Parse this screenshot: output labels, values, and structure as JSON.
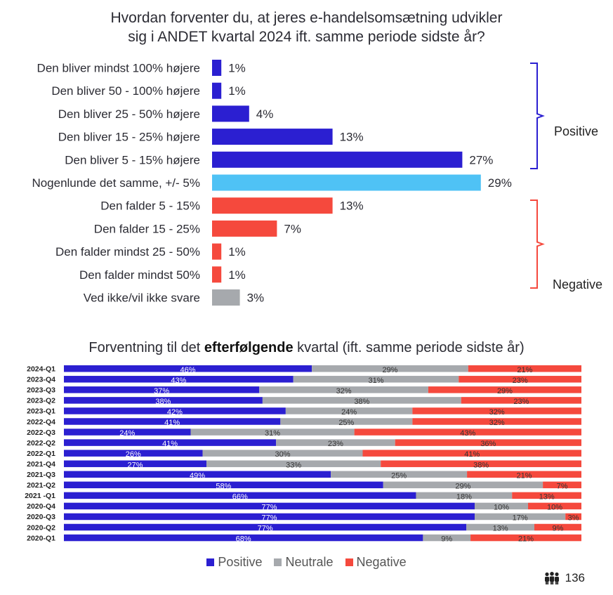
{
  "title_line1": "Hvordan forventer du, at jeres e-handelsomsætning udvikler",
  "title_line2": "sig i ANDET kvartal 2024 ift. samme periode sidste år?",
  "title2_pre": "Forventning til det ",
  "title2_bold": "efterfølgende",
  "title2_post": " kvartal (ift. samme periode sidste år)",
  "brackets": {
    "positive": "Positive",
    "negative": "Negative"
  },
  "legend": {
    "positive": "Positive",
    "neutral": "Neutrale",
    "negative": "Negative"
  },
  "page_number": "136",
  "colors": {
    "positive": "#2b1fd1",
    "neutral": "#a6a9ad",
    "neutral_top": "#4fc2f5",
    "negative": "#f5493d",
    "dontknow": "#a6a9ad"
  },
  "chart_data": [
    {
      "type": "bar",
      "orientation": "horizontal",
      "categories": [
        "Den bliver mindst 100% højere",
        "Den bliver 50 - 100% højere",
        "Den bliver 25 - 50% højere",
        "Den bliver 15 - 25% højere",
        "Den bliver 5 - 15% højere",
        "Nogenlunde det samme, +/- 5%",
        "Den falder 5 - 15%",
        "Den falder 15 - 25%",
        "Den falder mindst 25 - 50%",
        "Den falder mindst 50%",
        "Ved ikke/vil ikke svare"
      ],
      "values": [
        1,
        1,
        4,
        13,
        27,
        29,
        13,
        7,
        1,
        1,
        3
      ],
      "labels": [
        "1%",
        "1%",
        "4%",
        "13%",
        "27%",
        "29%",
        "13%",
        "7%",
        "1%",
        "1%",
        "3%"
      ],
      "groups": [
        "positive",
        "positive",
        "positive",
        "positive",
        "positive",
        "neutral",
        "negative",
        "negative",
        "negative",
        "negative",
        "dontknow"
      ]
    },
    {
      "type": "bar",
      "orientation": "horizontal",
      "stacked": true,
      "percent": true,
      "categories": [
        "2024-Q1",
        "2023-Q4",
        "2023-Q3",
        "2023-Q2",
        "2023-Q1",
        "2022-Q4",
        "2022-Q3",
        "2022-Q2",
        "2022-Q1",
        "2021-Q4",
        "2021-Q3",
        "2021-Q2",
        "2021 -Q1",
        "2020-Q4",
        "2020-Q3",
        "2020-Q2",
        "2020-Q1"
      ],
      "series": [
        {
          "name": "Positive",
          "values": [
            46,
            43,
            37,
            38,
            42,
            41,
            24,
            41,
            26,
            27,
            49,
            58,
            66,
            77,
            77,
            77,
            68
          ]
        },
        {
          "name": "Neutrale",
          "values": [
            29,
            31,
            32,
            38,
            24,
            25,
            31,
            23,
            30,
            33,
            25,
            29,
            18,
            10,
            17,
            13,
            9
          ]
        },
        {
          "name": "Negative",
          "values": [
            21,
            23,
            29,
            23,
            32,
            32,
            43,
            36,
            41,
            38,
            21,
            7,
            13,
            10,
            3,
            9,
            21
          ]
        }
      ],
      "legend": "bottom"
    }
  ]
}
